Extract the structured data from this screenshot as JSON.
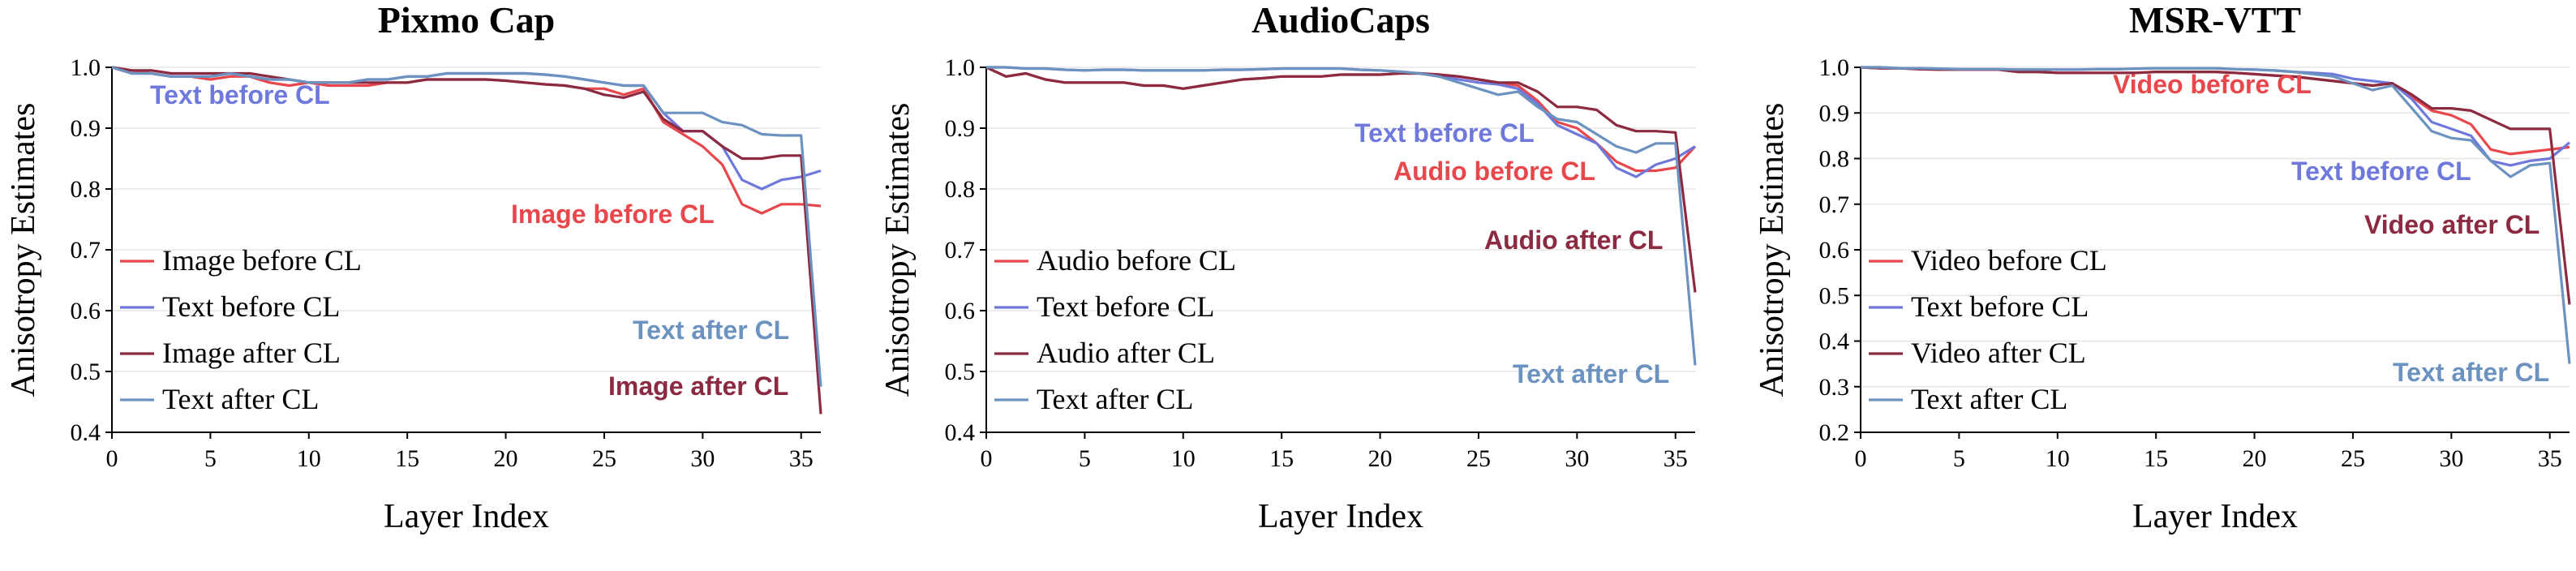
{
  "chart_data": [
    {
      "type": "line",
      "title": "Pixmo Cap",
      "xlabel": "Layer Index",
      "ylabel": "Anisotropy Estimates",
      "xlim": [
        0,
        36
      ],
      "ylim": [
        0.4,
        1.0
      ],
      "xticks": [
        "0",
        "5",
        "10",
        "15",
        "20",
        "25",
        "30",
        "35"
      ],
      "yticks": [
        "0.4",
        "0.5",
        "0.6",
        "0.7",
        "0.8",
        "0.9",
        "1.0"
      ],
      "grid": "horizontal",
      "legend_position": "lower-left",
      "x": [
        0,
        1,
        2,
        3,
        4,
        5,
        6,
        7,
        8,
        9,
        10,
        11,
        12,
        13,
        14,
        15,
        16,
        17,
        18,
        19,
        20,
        21,
        22,
        23,
        24,
        25,
        26,
        27,
        28,
        29,
        30,
        31,
        32,
        33,
        34,
        35,
        36
      ],
      "series": [
        {
          "name": "Image before CL",
          "color": "#e8474c",
          "values": [
            1.0,
            0.995,
            0.99,
            0.985,
            0.985,
            0.98,
            0.985,
            0.985,
            0.975,
            0.97,
            0.975,
            0.97,
            0.97,
            0.97,
            0.975,
            0.975,
            0.98,
            0.98,
            0.98,
            0.98,
            0.978,
            0.975,
            0.972,
            0.97,
            0.965,
            0.965,
            0.955,
            0.965,
            0.91,
            0.89,
            0.87,
            0.84,
            0.775,
            0.76,
            0.775,
            0.775,
            0.772
          ]
        },
        {
          "name": "Text before CL",
          "color": "#6f79dc",
          "values": [
            1.0,
            0.99,
            0.99,
            0.985,
            0.985,
            0.985,
            0.99,
            0.985,
            0.98,
            0.98,
            0.975,
            0.975,
            0.975,
            0.98,
            0.98,
            0.985,
            0.985,
            0.99,
            0.99,
            0.99,
            0.99,
            0.99,
            0.988,
            0.985,
            0.98,
            0.975,
            0.97,
            0.97,
            0.925,
            0.895,
            0.895,
            0.87,
            0.815,
            0.8,
            0.815,
            0.82,
            0.83
          ]
        },
        {
          "name": "Image after CL",
          "color": "#8b2a40",
          "values": [
            1.0,
            0.995,
            0.995,
            0.99,
            0.99,
            0.99,
            0.99,
            0.99,
            0.985,
            0.98,
            0.975,
            0.975,
            0.975,
            0.975,
            0.975,
            0.975,
            0.98,
            0.98,
            0.98,
            0.98,
            0.978,
            0.975,
            0.972,
            0.97,
            0.965,
            0.955,
            0.95,
            0.96,
            0.915,
            0.895,
            0.895,
            0.87,
            0.85,
            0.85,
            0.855,
            0.855,
            0.43
          ]
        },
        {
          "name": "Text after CL",
          "color": "#6c93c0",
          "values": [
            1.0,
            0.99,
            0.99,
            0.985,
            0.985,
            0.985,
            0.99,
            0.985,
            0.98,
            0.98,
            0.975,
            0.975,
            0.975,
            0.98,
            0.98,
            0.985,
            0.985,
            0.99,
            0.99,
            0.99,
            0.99,
            0.99,
            0.988,
            0.985,
            0.98,
            0.975,
            0.97,
            0.97,
            0.925,
            0.925,
            0.925,
            0.91,
            0.905,
            0.89,
            0.888,
            0.888,
            0.475
          ]
        }
      ],
      "annotations": [
        {
          "text": "Text before CL",
          "color": "#6f79dc"
        },
        {
          "text": "Image before CL",
          "color": "#e8474c"
        },
        {
          "text": "Text after CL",
          "color": "#6c93c0"
        },
        {
          "text": "Image after CL",
          "color": "#8b2a40"
        }
      ]
    },
    {
      "type": "line",
      "title": "AudioCaps",
      "xlabel": "Layer Index",
      "ylabel": "Anisotropy Estimates",
      "xlim": [
        0,
        36
      ],
      "ylim": [
        0.4,
        1.0
      ],
      "xticks": [
        "0",
        "5",
        "10",
        "15",
        "20",
        "25",
        "30",
        "35"
      ],
      "yticks": [
        "0.4",
        "0.5",
        "0.6",
        "0.7",
        "0.8",
        "0.9",
        "1.0"
      ],
      "grid": "horizontal",
      "legend_position": "lower-left",
      "x": [
        0,
        1,
        2,
        3,
        4,
        5,
        6,
        7,
        8,
        9,
        10,
        11,
        12,
        13,
        14,
        15,
        16,
        17,
        18,
        19,
        20,
        21,
        22,
        23,
        24,
        25,
        26,
        27,
        28,
        29,
        30,
        31,
        32,
        33,
        34,
        35,
        36
      ],
      "series": [
        {
          "name": "Audio before CL",
          "color": "#e8474c",
          "values": [
            1.0,
            0.985,
            0.99,
            0.98,
            0.975,
            0.975,
            0.975,
            0.975,
            0.97,
            0.97,
            0.965,
            0.97,
            0.975,
            0.98,
            0.982,
            0.985,
            0.985,
            0.985,
            0.988,
            0.988,
            0.988,
            0.99,
            0.99,
            0.988,
            0.985,
            0.98,
            0.975,
            0.97,
            0.945,
            0.91,
            0.9,
            0.875,
            0.845,
            0.83,
            0.83,
            0.835,
            0.87
          ]
        },
        {
          "name": "Text before CL",
          "color": "#6f79dc",
          "values": [
            1.0,
            1.0,
            0.998,
            0.998,
            0.996,
            0.995,
            0.996,
            0.996,
            0.995,
            0.995,
            0.995,
            0.995,
            0.996,
            0.996,
            0.997,
            0.998,
            0.998,
            0.998,
            0.998,
            0.996,
            0.995,
            0.993,
            0.99,
            0.985,
            0.98,
            0.975,
            0.972,
            0.965,
            0.94,
            0.905,
            0.89,
            0.875,
            0.835,
            0.82,
            0.84,
            0.85,
            0.87
          ]
        },
        {
          "name": "Audio after CL",
          "color": "#8b2a40",
          "values": [
            1.0,
            0.985,
            0.99,
            0.98,
            0.975,
            0.975,
            0.975,
            0.975,
            0.97,
            0.97,
            0.965,
            0.97,
            0.975,
            0.98,
            0.982,
            0.985,
            0.985,
            0.985,
            0.988,
            0.988,
            0.988,
            0.99,
            0.99,
            0.988,
            0.985,
            0.98,
            0.975,
            0.975,
            0.96,
            0.935,
            0.935,
            0.93,
            0.905,
            0.895,
            0.895,
            0.893,
            0.63
          ]
        },
        {
          "name": "Text after CL",
          "color": "#6c93c0",
          "values": [
            1.0,
            1.0,
            0.998,
            0.998,
            0.996,
            0.995,
            0.996,
            0.996,
            0.995,
            0.995,
            0.995,
            0.995,
            0.996,
            0.996,
            0.997,
            0.998,
            0.998,
            0.998,
            0.998,
            0.996,
            0.995,
            0.993,
            0.99,
            0.985,
            0.975,
            0.965,
            0.955,
            0.96,
            0.935,
            0.915,
            0.91,
            0.89,
            0.87,
            0.86,
            0.875,
            0.875,
            0.51
          ]
        }
      ],
      "annotations": [
        {
          "text": "Text before CL",
          "color": "#6f79dc"
        },
        {
          "text": "Audio before CL",
          "color": "#e8474c"
        },
        {
          "text": "Audio after CL",
          "color": "#8b2a40"
        },
        {
          "text": "Text after CL",
          "color": "#6c93c0"
        }
      ]
    },
    {
      "type": "line",
      "title": "MSR-VTT",
      "xlabel": "Layer Index",
      "ylabel": "Anisotropy Estimates",
      "xlim": [
        0,
        36
      ],
      "ylim": [
        0.2,
        1.0
      ],
      "xticks": [
        "0",
        "5",
        "10",
        "15",
        "20",
        "25",
        "30",
        "35"
      ],
      "yticks": [
        "0.2",
        "0.3",
        "0.4",
        "0.5",
        "0.6",
        "0.7",
        "0.8",
        "0.9",
        "1.0"
      ],
      "grid": "horizontal",
      "legend_position": "lower-left",
      "x": [
        0,
        1,
        2,
        3,
        4,
        5,
        6,
        7,
        8,
        9,
        10,
        11,
        12,
        13,
        14,
        15,
        16,
        17,
        18,
        19,
        20,
        21,
        22,
        23,
        24,
        25,
        26,
        27,
        28,
        29,
        30,
        31,
        32,
        33,
        34,
        35,
        36
      ],
      "series": [
        {
          "name": "Video before CL",
          "color": "#e8474c",
          "values": [
            1.0,
            0.998,
            0.998,
            0.996,
            0.995,
            0.995,
            0.995,
            0.995,
            0.99,
            0.99,
            0.988,
            0.988,
            0.988,
            0.988,
            0.988,
            0.99,
            0.99,
            0.99,
            0.99,
            0.988,
            0.985,
            0.982,
            0.98,
            0.975,
            0.97,
            0.965,
            0.96,
            0.965,
            0.935,
            0.905,
            0.895,
            0.875,
            0.82,
            0.81,
            0.815,
            0.82,
            0.825
          ]
        },
        {
          "name": "Text before CL",
          "color": "#6f79dc",
          "values": [
            1.0,
            1.0,
            0.998,
            0.998,
            0.997,
            0.996,
            0.996,
            0.996,
            0.995,
            0.995,
            0.995,
            0.995,
            0.996,
            0.996,
            0.997,
            0.998,
            0.998,
            0.998,
            0.998,
            0.996,
            0.995,
            0.993,
            0.99,
            0.988,
            0.985,
            0.975,
            0.97,
            0.965,
            0.93,
            0.88,
            0.865,
            0.85,
            0.795,
            0.785,
            0.795,
            0.8,
            0.835
          ]
        },
        {
          "name": "Video after CL",
          "color": "#8b2a40",
          "values": [
            1.0,
            0.998,
            0.998,
            0.996,
            0.995,
            0.995,
            0.995,
            0.995,
            0.99,
            0.99,
            0.988,
            0.988,
            0.988,
            0.988,
            0.988,
            0.99,
            0.99,
            0.99,
            0.99,
            0.988,
            0.985,
            0.982,
            0.98,
            0.975,
            0.97,
            0.965,
            0.96,
            0.965,
            0.94,
            0.91,
            0.91,
            0.905,
            0.885,
            0.865,
            0.865,
            0.865,
            0.48
          ]
        },
        {
          "name": "Text after CL",
          "color": "#6c93c0",
          "values": [
            1.0,
            1.0,
            0.998,
            0.998,
            0.997,
            0.996,
            0.996,
            0.996,
            0.995,
            0.995,
            0.995,
            0.995,
            0.996,
            0.996,
            0.997,
            0.998,
            0.998,
            0.998,
            0.998,
            0.996,
            0.995,
            0.993,
            0.99,
            0.985,
            0.98,
            0.965,
            0.95,
            0.96,
            0.91,
            0.86,
            0.845,
            0.84,
            0.795,
            0.76,
            0.785,
            0.79,
            0.35
          ]
        }
      ],
      "annotations": [
        {
          "text": "Video before CL",
          "color": "#e8474c"
        },
        {
          "text": "Text before CL",
          "color": "#6f79dc"
        },
        {
          "text": "Video after CL",
          "color": "#8b2a40"
        },
        {
          "text": "Text after CL",
          "color": "#6c93c0"
        }
      ]
    }
  ]
}
